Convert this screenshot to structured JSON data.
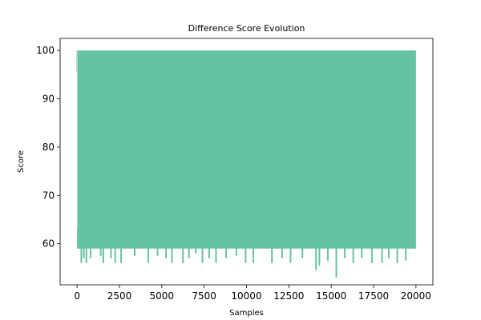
{
  "chart_data": {
    "type": "line",
    "title": "Difference Score Evolution",
    "xlabel": "Samples",
    "ylabel": "Score",
    "xlim": [
      -1000,
      21000
    ],
    "ylim": [
      51.5,
      102.5
    ],
    "x_ticks": [
      0,
      2500,
      5000,
      7500,
      10000,
      12500,
      15000,
      17500,
      20000
    ],
    "y_ticks": [
      60,
      70,
      80,
      90,
      100
    ],
    "grid": false,
    "legend": "none",
    "line_color": "#66c2a5",
    "series": [
      {
        "samples": 20000,
        "x_range": [
          0,
          20000
        ],
        "upper_envelope": 100,
        "baseline_floor": 59,
        "first_value": 95.5,
        "initial_dip": {
          "x": 0,
          "y": 63
        },
        "low_excursions": [
          {
            "x": 250,
            "y": 56
          },
          {
            "x": 400,
            "y": 57
          },
          {
            "x": 550,
            "y": 56
          },
          {
            "x": 800,
            "y": 57
          },
          {
            "x": 1400,
            "y": 57.5
          },
          {
            "x": 1550,
            "y": 56
          },
          {
            "x": 2000,
            "y": 57
          },
          {
            "x": 2250,
            "y": 56
          },
          {
            "x": 2600,
            "y": 56
          },
          {
            "x": 3400,
            "y": 57.5
          },
          {
            "x": 3950,
            "y": 60
          },
          {
            "x": 4200,
            "y": 56
          },
          {
            "x": 4750,
            "y": 57.5
          },
          {
            "x": 5250,
            "y": 57
          },
          {
            "x": 5600,
            "y": 56
          },
          {
            "x": 6250,
            "y": 56
          },
          {
            "x": 6600,
            "y": 57
          },
          {
            "x": 7000,
            "y": 58
          },
          {
            "x": 7400,
            "y": 56
          },
          {
            "x": 7800,
            "y": 57
          },
          {
            "x": 8200,
            "y": 56
          },
          {
            "x": 8800,
            "y": 57
          },
          {
            "x": 9400,
            "y": 57.5
          },
          {
            "x": 9950,
            "y": 56
          },
          {
            "x": 10400,
            "y": 56
          },
          {
            "x": 11000,
            "y": 60
          },
          {
            "x": 11500,
            "y": 56
          },
          {
            "x": 12100,
            "y": 57
          },
          {
            "x": 12600,
            "y": 56
          },
          {
            "x": 13300,
            "y": 57
          },
          {
            "x": 14100,
            "y": 54.5
          },
          {
            "x": 14300,
            "y": 55.5
          },
          {
            "x": 14800,
            "y": 56.5
          },
          {
            "x": 15300,
            "y": 53
          },
          {
            "x": 15800,
            "y": 57
          },
          {
            "x": 16300,
            "y": 56
          },
          {
            "x": 16800,
            "y": 57
          },
          {
            "x": 17400,
            "y": 56
          },
          {
            "x": 18000,
            "y": 56
          },
          {
            "x": 18400,
            "y": 57
          },
          {
            "x": 18900,
            "y": 56
          },
          {
            "x": 19400,
            "y": 56.5
          },
          {
            "x": 19800,
            "y": 59
          }
        ]
      }
    ]
  }
}
